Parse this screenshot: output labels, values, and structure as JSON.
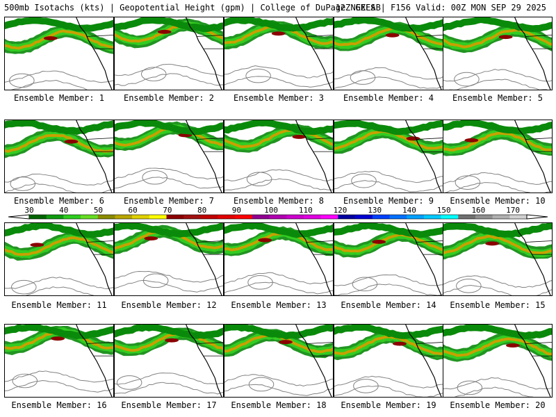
{
  "header": {
    "title_left": "500mb Isotachs (kts) | Geopotential Height (gpm) | College of DuPage NEXLAB",
    "title_right": "12Z GEFS | F156 Valid: 00Z MON SEP 29 2025"
  },
  "member_label_prefix": "Ensemble Member:",
  "members": [
    {
      "label": "Ensemble Member: 1"
    },
    {
      "label": "Ensemble Member: 2"
    },
    {
      "label": "Ensemble Member: 3"
    },
    {
      "label": "Ensemble Member: 4"
    },
    {
      "label": "Ensemble Member: 5"
    },
    {
      "label": "Ensemble Member: 6"
    },
    {
      "label": "Ensemble Member: 7"
    },
    {
      "label": "Ensemble Member: 8"
    },
    {
      "label": "Ensemble Member: 9"
    },
    {
      "label": "Ensemble Member: 10"
    },
    {
      "label": "Ensemble Member: 11"
    },
    {
      "label": "Ensemble Member: 12"
    },
    {
      "label": "Ensemble Member: 13"
    },
    {
      "label": "Ensemble Member: 14"
    },
    {
      "label": "Ensemble Member: 15"
    },
    {
      "label": "Ensemble Member: 16"
    },
    {
      "label": "Ensemble Member: 17"
    },
    {
      "label": "Ensemble Member: 18"
    },
    {
      "label": "Ensemble Member: 19"
    },
    {
      "label": "Ensemble Member: 20"
    }
  ],
  "colorbar": {
    "unit": "kts",
    "tick_labels": [
      "30",
      "40",
      "50",
      "60",
      "70",
      "80",
      "90",
      "100",
      "110",
      "120",
      "130",
      "140",
      "150",
      "160",
      "170"
    ],
    "colors": [
      "#006400",
      "#109a10",
      "#2ecc20",
      "#66dd22",
      "#8b8b00",
      "#b8a600",
      "#e0d000",
      "#ffff00",
      "#8b0000",
      "#a01010",
      "#c00000",
      "#e00000",
      "#ff0000",
      "#900090",
      "#b000b0",
      "#cc00cc",
      "#e000e0",
      "#ff00ff",
      "#0000a0",
      "#0000d0",
      "#0040ff",
      "#0070ff",
      "#00a0ff",
      "#00c8ff",
      "#00ffff",
      "#707070",
      "#909090",
      "#b0b0b0",
      "#d0d0d0"
    ]
  },
  "map_colors": {
    "jet_weak": "#0a8a0a",
    "jet_mid": "#22c81e",
    "jet_fill": "#33cc22",
    "jet_strong": "#c8a000",
    "jet_core": "#8b0000",
    "height_contour": "#808080",
    "coast": "#000000"
  }
}
